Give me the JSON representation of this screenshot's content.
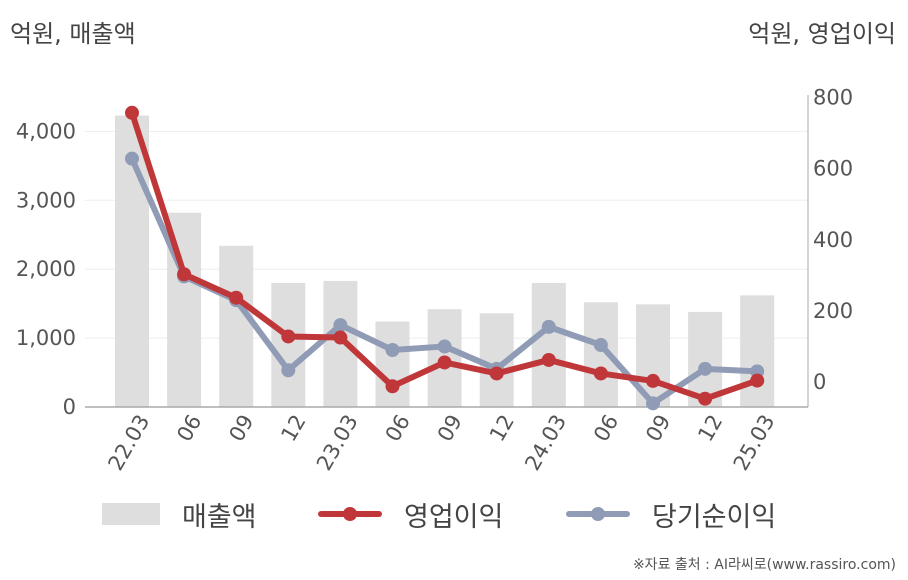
{
  "header": {
    "left_unit": "억원, 매출액",
    "right_unit": "억원, 영업이익"
  },
  "footer": {
    "source": "※자료 출처 : AI라씨로(www.rassiro.com)"
  },
  "colors": {
    "revenue": "#dedede",
    "operating_profit": "#c0373a",
    "net_income": "#909cb6",
    "axis": "#aaaaaa",
    "grid": "#eeeeee"
  },
  "chart_data": {
    "type": "bar+line",
    "categories": [
      "22.03",
      "06",
      "09",
      "12",
      "23.03",
      "06",
      "09",
      "12",
      "24.03",
      "06",
      "09",
      "12",
      "25.03"
    ],
    "left_axis": {
      "label": "억원, 매출액",
      "ticks": [
        "0",
        "1,000",
        "2,000",
        "3,000",
        "4,000"
      ],
      "tick_values": [
        0,
        1000,
        2000,
        3000,
        4000
      ],
      "range": [
        0,
        4200
      ]
    },
    "right_axis": {
      "label": "억원, 영업이익",
      "ticks": [
        "0",
        "200",
        "400",
        "600",
        "800"
      ],
      "tick_values": [
        0,
        200,
        400,
        600,
        800
      ],
      "range": [
        -70,
        800
      ]
    },
    "series": [
      {
        "name": "매출액",
        "type": "bar",
        "axis": "left",
        "values": [
          4230,
          2820,
          2340,
          1800,
          1830,
          1240,
          1420,
          1360,
          1800,
          1520,
          1490,
          1380,
          1620
        ]
      },
      {
        "name": "영업이익",
        "type": "line",
        "axis": "right",
        "values": [
          757,
          303,
          237,
          128,
          125,
          -12,
          55,
          24,
          62,
          24,
          3,
          -47,
          4
        ]
      },
      {
        "name": "당기순이익",
        "type": "line",
        "axis": "right",
        "values": [
          628,
          297,
          230,
          33,
          160,
          90,
          100,
          37,
          155,
          104,
          -60,
          37,
          30
        ]
      }
    ],
    "grid": true,
    "legend_position": "bottom"
  }
}
